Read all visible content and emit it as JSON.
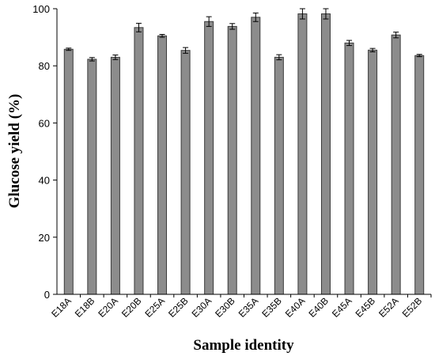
{
  "chart_data": {
    "type": "bar",
    "title": "",
    "xlabel": "Sample identity",
    "ylabel": "Glucose yield (%)",
    "ylim": [
      0,
      100
    ],
    "yticks": [
      0,
      20,
      40,
      60,
      80,
      100
    ],
    "grid": false,
    "categories": [
      "E18A",
      "E18B",
      "E20A",
      "E20B",
      "E25A",
      "E25B",
      "E30A",
      "E30B",
      "E35A",
      "E35B",
      "E40A",
      "E40B",
      "E45A",
      "E45B",
      "E52A",
      "E52B"
    ],
    "values": [
      85.8,
      82.3,
      83.0,
      93.4,
      90.5,
      85.4,
      95.5,
      93.8,
      97.0,
      83.0,
      98.2,
      98.2,
      88.0,
      85.5,
      90.8,
      83.6
    ],
    "errors": [
      0.4,
      0.6,
      0.8,
      1.5,
      0.5,
      1.0,
      1.7,
      1.0,
      1.5,
      0.9,
      1.8,
      1.8,
      0.9,
      0.6,
      1.0,
      0.4
    ],
    "colors": {
      "bar_fill": "#8c8c8c",
      "bar_stroke": "#3a3a3a",
      "axis": "#000000"
    }
  }
}
